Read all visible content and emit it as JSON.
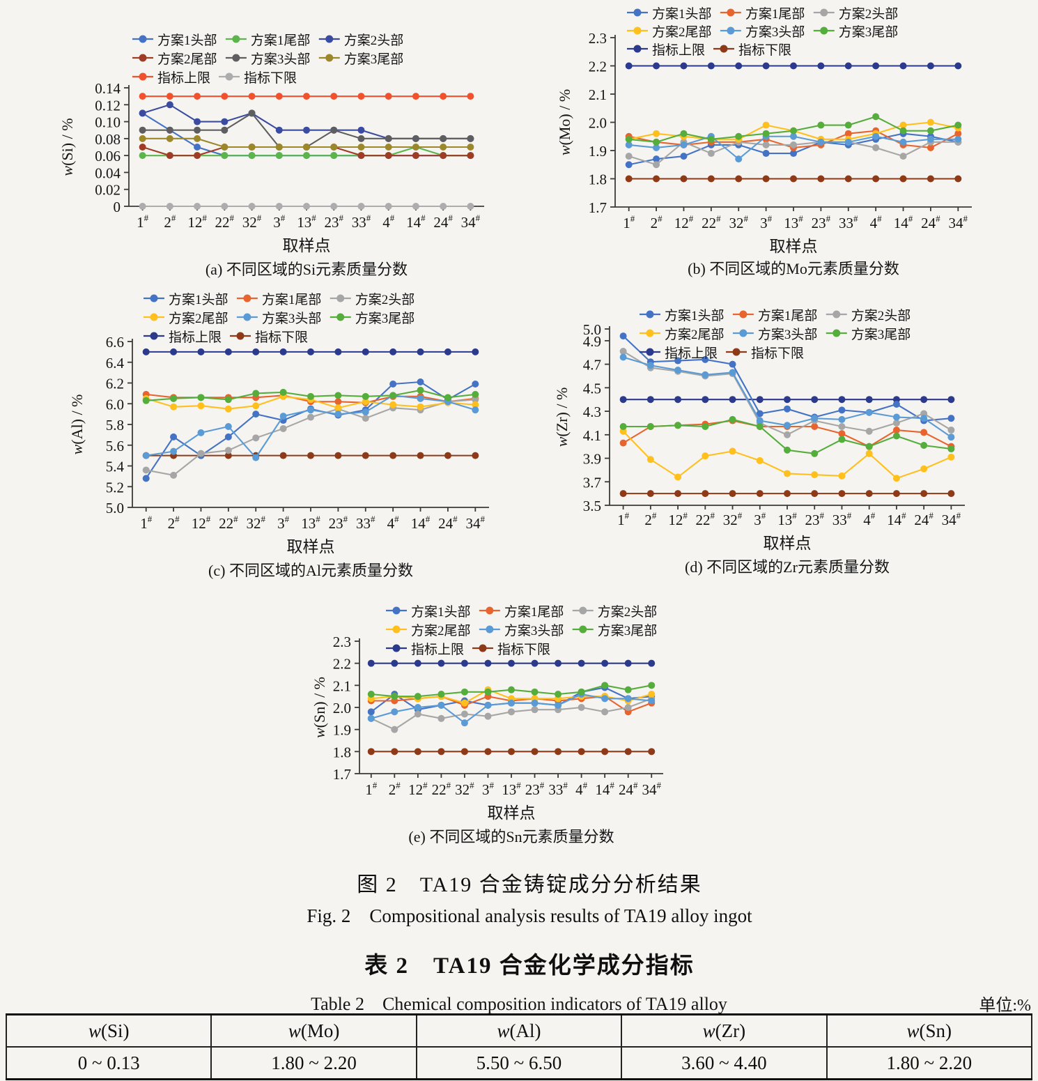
{
  "figure": {
    "caption_zh": "图 2　TA19 合金铸锭成分分析结果",
    "caption_en": "Fig. 2　Compositional analysis results of TA19 alloy ingot"
  },
  "table": {
    "title_zh": "表 2　TA19 合金化学成分指标",
    "title_en": "Table 2　Chemical composition indicators of TA19 alloy",
    "unit_label": "单位:%",
    "headers": [
      "w(Si)",
      "w(Mo)",
      "w(Al)",
      "w(Zr)",
      "w(Sn)"
    ],
    "rows": [
      [
        "0 ~ 0.13",
        "1.80 ~ 2.20",
        "5.50 ~ 6.50",
        "3.60 ~ 4.40",
        "1.80 ~ 2.20"
      ]
    ]
  },
  "chart_data": [
    {
      "id": "a",
      "type": "line",
      "title": "(a) 不同区域的Si元素质量分数",
      "xlabel": "取样点",
      "ylabel": "w(Si) / %",
      "ylim": [
        0,
        0.14
      ],
      "yticks": [
        0,
        0.02,
        0.04,
        0.06,
        0.08,
        0.1,
        0.12,
        0.14
      ],
      "ytick_labels": [
        "0",
        "0.02",
        "0.04",
        "0.06",
        "0.08",
        "0.10",
        "0.12",
        "0.14"
      ],
      "categories": [
        "1",
        "2",
        "12",
        "22",
        "32",
        "3",
        "13",
        "23",
        "33",
        "4",
        "14",
        "24",
        "34"
      ],
      "category_suffix": "#",
      "series": [
        {
          "key": "plan1-head",
          "name": "方案1头部",
          "color": "#4472C4",
          "values": [
            0.11,
            0.09,
            0.07,
            0.06,
            0.06,
            0.06,
            0.06,
            0.06,
            0.06,
            0.06,
            0.06,
            0.06,
            0.06
          ]
        },
        {
          "key": "plan1-tail",
          "name": "方案1尾部",
          "color": "#5CB54B",
          "values": [
            0.06,
            0.06,
            0.06,
            0.06,
            0.06,
            0.06,
            0.06,
            0.06,
            0.06,
            0.06,
            0.07,
            0.06,
            0.06
          ]
        },
        {
          "key": "plan2-head",
          "name": "方案2头部",
          "color": "#3B4CA0",
          "values": [
            0.11,
            0.12,
            0.1,
            0.1,
            0.11,
            0.09,
            0.09,
            0.09,
            0.09,
            0.08,
            0.08,
            0.08,
            0.08
          ]
        },
        {
          "key": "plan2-tail",
          "name": "方案2尾部",
          "color": "#A03B25",
          "values": [
            0.07,
            0.06,
            0.06,
            0.07,
            0.07,
            0.07,
            0.07,
            0.07,
            0.06,
            0.06,
            0.06,
            0.06,
            0.06
          ]
        },
        {
          "key": "plan3-head",
          "name": "方案3头部",
          "color": "#5E5E60",
          "values": [
            0.09,
            0.09,
            0.09,
            0.09,
            0.11,
            0.07,
            0.07,
            0.09,
            0.08,
            0.08,
            0.08,
            0.08,
            0.08
          ]
        },
        {
          "key": "plan3-tail",
          "name": "方案3尾部",
          "color": "#9C872A",
          "values": [
            0.08,
            0.08,
            0.08,
            0.07,
            0.07,
            0.07,
            0.07,
            0.07,
            0.07,
            0.07,
            0.07,
            0.07,
            0.07
          ]
        },
        {
          "key": "upper-limit",
          "name": "指标上限",
          "color": "#F1522D",
          "values": [
            0.13,
            0.13,
            0.13,
            0.13,
            0.13,
            0.13,
            0.13,
            0.13,
            0.13,
            0.13,
            0.13,
            0.13,
            0.13
          ]
        },
        {
          "key": "lower-limit",
          "name": "指标下限",
          "color": "#ADADAD",
          "values": [
            0,
            0,
            0,
            0,
            0,
            0,
            0,
            0,
            0,
            0,
            0,
            0,
            0
          ]
        }
      ]
    },
    {
      "id": "b",
      "type": "line",
      "title": "(b) 不同区域的Mo元素质量分数",
      "xlabel": "取样点",
      "ylabel": "w(Mo) / %",
      "ylim": [
        1.7,
        2.3
      ],
      "yticks": [
        1.7,
        1.8,
        1.9,
        2.0,
        2.1,
        2.2,
        2.3
      ],
      "ytick_labels": [
        "1.7",
        "1.8",
        "1.9",
        "2.0",
        "2.1",
        "2.2",
        "2.3"
      ],
      "categories": [
        "1",
        "2",
        "12",
        "22",
        "32",
        "3",
        "13",
        "23",
        "33",
        "4",
        "14",
        "24",
        "34"
      ],
      "category_suffix": "#",
      "series": [
        {
          "key": "plan1-head",
          "name": "方案1头部",
          "color": "#4472C4",
          "values": [
            1.85,
            1.87,
            1.88,
            1.92,
            1.92,
            1.89,
            1.89,
            1.93,
            1.92,
            1.94,
            1.96,
            1.95,
            1.93
          ]
        },
        {
          "key": "plan1-tail",
          "name": "方案1尾部",
          "color": "#E8642E",
          "values": [
            1.95,
            1.93,
            1.92,
            1.93,
            1.93,
            1.94,
            1.91,
            1.92,
            1.96,
            1.97,
            1.92,
            1.91,
            1.96
          ]
        },
        {
          "key": "plan2-head",
          "name": "方案2头部",
          "color": "#A6A6A6",
          "values": [
            1.88,
            1.85,
            1.93,
            1.89,
            1.93,
            1.92,
            1.92,
            1.93,
            1.93,
            1.91,
            1.88,
            1.93,
            1.93
          ]
        },
        {
          "key": "plan2-tail",
          "name": "方案2尾部",
          "color": "#FFC01E",
          "values": [
            1.94,
            1.96,
            1.95,
            1.94,
            1.94,
            1.99,
            1.97,
            1.94,
            1.94,
            1.96,
            1.99,
            2.0,
            1.98
          ]
        },
        {
          "key": "plan3-head",
          "name": "方案3头部",
          "color": "#5B9BD5",
          "values": [
            1.92,
            1.91,
            1.92,
            1.95,
            1.87,
            1.95,
            1.95,
            1.93,
            1.93,
            1.95,
            1.93,
            1.94,
            1.94
          ]
        },
        {
          "key": "plan3-tail",
          "name": "方案3尾部",
          "color": "#55AD3B",
          "values": [
            1.94,
            1.93,
            1.96,
            1.94,
            1.95,
            1.96,
            1.97,
            1.99,
            1.99,
            2.02,
            1.97,
            1.97,
            1.99
          ]
        },
        {
          "key": "upper-limit",
          "name": "指标上限",
          "color": "#2B3A8C",
          "values": [
            2.2,
            2.2,
            2.2,
            2.2,
            2.2,
            2.2,
            2.2,
            2.2,
            2.2,
            2.2,
            2.2,
            2.2,
            2.2
          ]
        },
        {
          "key": "lower-limit",
          "name": "指标下限",
          "color": "#8E3A18",
          "values": [
            1.8,
            1.8,
            1.8,
            1.8,
            1.8,
            1.8,
            1.8,
            1.8,
            1.8,
            1.8,
            1.8,
            1.8,
            1.8
          ]
        }
      ]
    },
    {
      "id": "c",
      "type": "line",
      "title": "(c) 不同区域的Al元素质量分数",
      "xlabel": "取样点",
      "ylabel": "w(Al) / %",
      "ylim": [
        5.0,
        6.6
      ],
      "yticks": [
        5.0,
        5.2,
        5.4,
        5.6,
        5.8,
        6.0,
        6.2,
        6.4,
        6.6
      ],
      "ytick_labels": [
        "5.0",
        "5.2",
        "5.4",
        "5.6",
        "5.8",
        "6.0",
        "6.2",
        "6.4",
        "6.6"
      ],
      "categories": [
        "1",
        "2",
        "12",
        "22",
        "32",
        "3",
        "13",
        "23",
        "33",
        "4",
        "14",
        "24",
        "34"
      ],
      "category_suffix": "#",
      "series": [
        {
          "key": "plan1-head",
          "name": "方案1头部",
          "color": "#4472C4",
          "values": [
            5.28,
            5.68,
            5.5,
            5.68,
            5.9,
            5.84,
            5.95,
            5.89,
            5.94,
            6.19,
            6.21,
            6.04,
            6.19
          ]
        },
        {
          "key": "plan1-tail",
          "name": "方案1尾部",
          "color": "#E8642E",
          "values": [
            6.09,
            6.06,
            6.06,
            6.06,
            6.06,
            6.08,
            6.02,
            6.02,
            6.01,
            6.07,
            6.07,
            6.02,
            6.05
          ]
        },
        {
          "key": "plan2-head",
          "name": "方案2头部",
          "color": "#A6A6A6",
          "values": [
            5.36,
            5.31,
            5.52,
            5.55,
            5.67,
            5.76,
            5.87,
            5.95,
            5.86,
            5.96,
            5.94,
            6.02,
            6.04
          ]
        },
        {
          "key": "plan2-tail",
          "name": "方案2尾部",
          "color": "#FFC01E",
          "values": [
            6.05,
            5.97,
            5.98,
            5.95,
            5.98,
            6.07,
            6.04,
            5.96,
            6.02,
            5.99,
            5.97,
            6.01,
            5.99
          ]
        },
        {
          "key": "plan3-head",
          "name": "方案3头部",
          "color": "#5B9BD5",
          "values": [
            5.5,
            5.54,
            5.72,
            5.78,
            5.48,
            5.88,
            5.94,
            5.9,
            5.92,
            6.08,
            6.05,
            6.02,
            5.94
          ]
        },
        {
          "key": "plan3-tail",
          "name": "方案3尾部",
          "color": "#55AD3B",
          "values": [
            6.03,
            6.05,
            6.06,
            6.04,
            6.1,
            6.11,
            6.07,
            6.08,
            6.07,
            6.08,
            6.13,
            6.06,
            6.09
          ]
        },
        {
          "key": "upper-limit",
          "name": "指标上限",
          "color": "#2B3A8C",
          "values": [
            6.5,
            6.5,
            6.5,
            6.5,
            6.5,
            6.5,
            6.5,
            6.5,
            6.5,
            6.5,
            6.5,
            6.5,
            6.5
          ]
        },
        {
          "key": "lower-limit",
          "name": "指标下限",
          "color": "#8E3A18",
          "values": [
            5.5,
            5.5,
            5.5,
            5.5,
            5.5,
            5.5,
            5.5,
            5.5,
            5.5,
            5.5,
            5.5,
            5.5,
            5.5
          ]
        }
      ]
    },
    {
      "id": "d",
      "type": "line",
      "title": "(d) 不同区域的Zr元素质量分数",
      "xlabel": "取样点",
      "ylabel": "w(Zr) / %",
      "ylim": [
        3.5,
        5.0
      ],
      "yticks": [
        3.5,
        3.7,
        3.9,
        4.1,
        4.3,
        4.5,
        4.7,
        4.9,
        5.0
      ],
      "ytick_labels": [
        "3.5",
        "3.7",
        "3.9",
        "4.1",
        "4.3",
        "4.5",
        "4.7",
        "4.9",
        "5.0"
      ],
      "categories": [
        "1",
        "2",
        "12",
        "22",
        "32",
        "3",
        "13",
        "23",
        "33",
        "4",
        "14",
        "24",
        "34"
      ],
      "category_suffix": "#",
      "series": [
        {
          "key": "plan1-head",
          "name": "方案1头部",
          "color": "#4472C4",
          "values": [
            4.94,
            4.72,
            4.73,
            4.74,
            4.7,
            4.28,
            4.32,
            4.25,
            4.31,
            4.29,
            4.36,
            4.22,
            4.24
          ]
        },
        {
          "key": "plan1-tail",
          "name": "方案1尾部",
          "color": "#E8642E",
          "values": [
            4.03,
            4.17,
            4.18,
            4.19,
            4.22,
            4.17,
            4.17,
            4.17,
            4.11,
            4.0,
            4.14,
            4.12,
            4.0
          ]
        },
        {
          "key": "plan2-head",
          "name": "方案2头部",
          "color": "#A6A6A6",
          "values": [
            4.81,
            4.67,
            4.64,
            4.6,
            4.62,
            4.2,
            4.1,
            4.22,
            4.17,
            4.13,
            4.2,
            4.28,
            4.14
          ]
        },
        {
          "key": "plan2-tail",
          "name": "方案2尾部",
          "color": "#FFC01E",
          "values": [
            4.13,
            3.89,
            3.74,
            3.92,
            3.96,
            3.88,
            3.77,
            3.76,
            3.75,
            3.94,
            3.73,
            3.81,
            3.91
          ]
        },
        {
          "key": "plan3-head",
          "name": "方案3头部",
          "color": "#5B9BD5",
          "values": [
            4.76,
            4.69,
            4.65,
            4.61,
            4.63,
            4.22,
            4.18,
            4.24,
            4.23,
            4.29,
            4.25,
            4.24,
            4.08
          ]
        },
        {
          "key": "plan3-tail",
          "name": "方案3尾部",
          "color": "#55AD3B",
          "values": [
            4.17,
            4.17,
            4.18,
            4.17,
            4.23,
            4.17,
            3.97,
            3.94,
            4.06,
            4.0,
            4.09,
            4.01,
            3.98
          ]
        },
        {
          "key": "upper-limit",
          "name": "指标上限",
          "color": "#2B3A8C",
          "values": [
            4.4,
            4.4,
            4.4,
            4.4,
            4.4,
            4.4,
            4.4,
            4.4,
            4.4,
            4.4,
            4.4,
            4.4,
            4.4
          ]
        },
        {
          "key": "lower-limit",
          "name": "指标下限",
          "color": "#8E3A18",
          "values": [
            3.6,
            3.6,
            3.6,
            3.6,
            3.6,
            3.6,
            3.6,
            3.6,
            3.6,
            3.6,
            3.6,
            3.6,
            3.6
          ]
        }
      ]
    },
    {
      "id": "e",
      "type": "line",
      "title": "(e) 不同区域的Sn元素质量分数",
      "xlabel": "取样点",
      "ylabel": "w(Sn) / %",
      "ylim": [
        1.7,
        2.3
      ],
      "yticks": [
        1.7,
        1.8,
        1.9,
        2.0,
        2.1,
        2.2,
        2.3
      ],
      "ytick_labels": [
        "1.7",
        "1.8",
        "1.9",
        "2.0",
        "2.1",
        "2.2",
        "2.3"
      ],
      "categories": [
        "1",
        "2",
        "12",
        "22",
        "32",
        "3",
        "13",
        "23",
        "33",
        "4",
        "14",
        "24",
        "34"
      ],
      "category_suffix": "#",
      "series": [
        {
          "key": "plan1-head",
          "name": "方案1头部",
          "color": "#4472C4",
          "values": [
            1.98,
            2.06,
            1.99,
            2.01,
            2.03,
            2.01,
            2.02,
            2.02,
            2.01,
            2.07,
            2.09,
            2.04,
            2.05
          ]
        },
        {
          "key": "plan1-tail",
          "name": "方案1尾部",
          "color": "#E8642E",
          "values": [
            2.03,
            2.03,
            2.04,
            2.05,
            2.01,
            2.05,
            2.03,
            2.04,
            2.03,
            2.04,
            2.05,
            1.98,
            2.02
          ]
        },
        {
          "key": "plan2-head",
          "name": "方案2头部",
          "color": "#A6A6A6",
          "values": [
            1.95,
            1.9,
            1.97,
            1.95,
            1.97,
            1.96,
            1.98,
            1.99,
            1.99,
            2.0,
            1.98,
            2.0,
            2.04
          ]
        },
        {
          "key": "plan2-tail",
          "name": "方案2尾部",
          "color": "#FFC01E",
          "values": [
            2.04,
            2.05,
            2.04,
            2.05,
            2.02,
            2.08,
            2.04,
            2.04,
            2.04,
            2.05,
            2.05,
            2.03,
            2.06
          ]
        },
        {
          "key": "plan3-head",
          "name": "方案3头部",
          "color": "#5B9BD5",
          "values": [
            1.95,
            1.98,
            2.0,
            2.01,
            1.93,
            2.01,
            2.02,
            2.02,
            2.01,
            2.06,
            2.04,
            2.04,
            2.03
          ]
        },
        {
          "key": "plan3-tail",
          "name": "方案3尾部",
          "color": "#55AD3B",
          "values": [
            2.06,
            2.05,
            2.05,
            2.06,
            2.07,
            2.07,
            2.08,
            2.07,
            2.06,
            2.07,
            2.1,
            2.08,
            2.1
          ]
        },
        {
          "key": "upper-limit",
          "name": "指标上限",
          "color": "#2B3A8C",
          "values": [
            2.2,
            2.2,
            2.2,
            2.2,
            2.2,
            2.2,
            2.2,
            2.2,
            2.2,
            2.2,
            2.2,
            2.2,
            2.2
          ]
        },
        {
          "key": "lower-limit",
          "name": "指标下限",
          "color": "#8E3A18",
          "values": [
            1.8,
            1.8,
            1.8,
            1.8,
            1.8,
            1.8,
            1.8,
            1.8,
            1.8,
            1.8,
            1.8,
            1.8,
            1.8
          ]
        }
      ]
    }
  ]
}
